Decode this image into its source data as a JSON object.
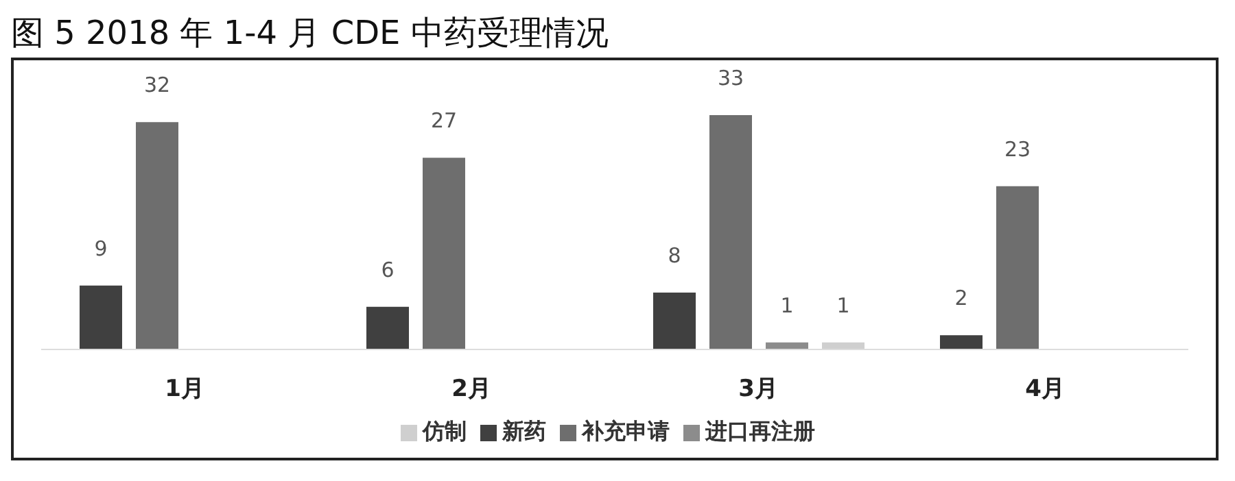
{
  "chart_data": {
    "type": "bar",
    "title": "图 5 2018 年 1-4 月 CDE 中药受理情况",
    "categories": [
      "1月",
      "2月",
      "3月",
      "4月"
    ],
    "series": [
      {
        "name": "新药",
        "color": "#404040",
        "values": [
          9,
          6,
          8,
          2
        ]
      },
      {
        "name": "补充申请",
        "color": "#6e6e6e",
        "values": [
          32,
          27,
          33,
          23
        ]
      },
      {
        "name": "进口再注册",
        "color": "#8c8c8c",
        "values": [
          null,
          null,
          1,
          null
        ]
      },
      {
        "name": "仿制",
        "color": "#cfcfcf",
        "values": [
          null,
          null,
          1,
          null
        ]
      }
    ],
    "data_labels": true,
    "legend": "bottom",
    "grid": false
  }
}
